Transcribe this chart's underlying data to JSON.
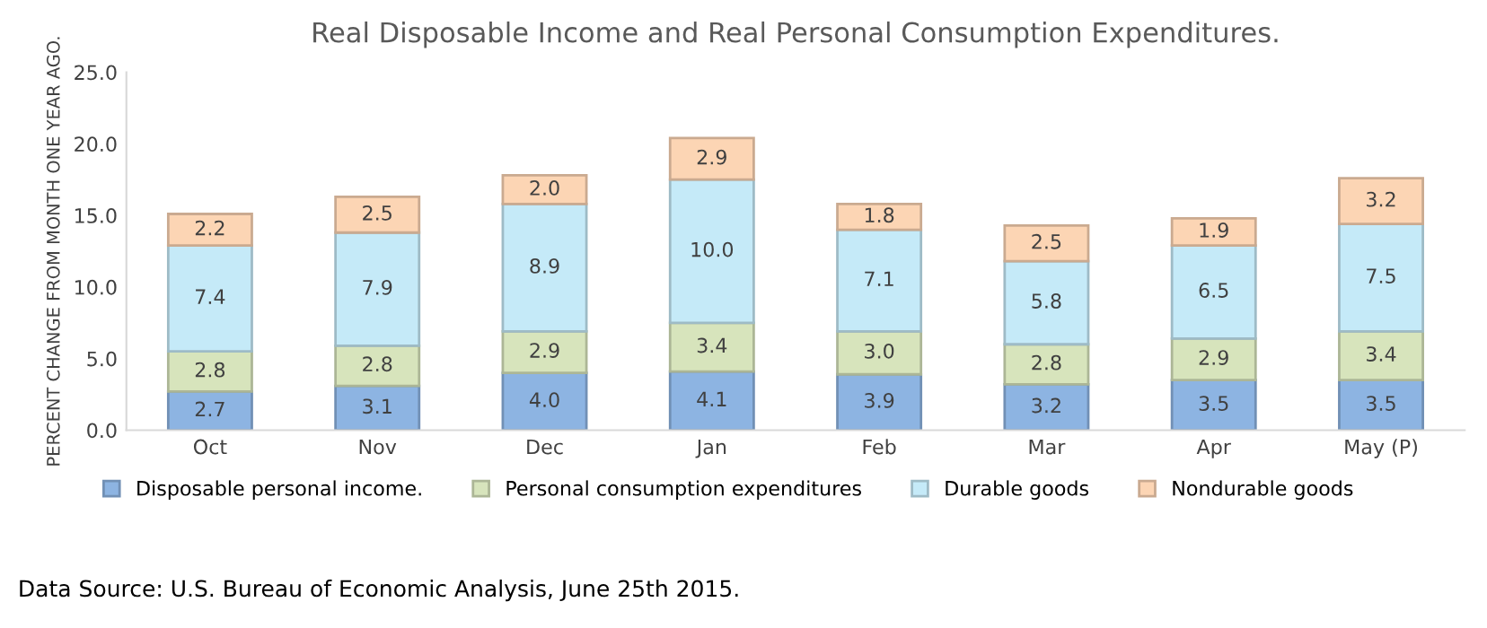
{
  "chart_data": {
    "type": "bar",
    "stacked": true,
    "title": "Real Disposable Income and Real Personal Consumption Expenditures.",
    "ylabel": "PERCENT CHANGE FROM MONTH ONE YEAR AGO.",
    "categories": [
      "Oct",
      "Nov",
      "Dec",
      "Jan",
      "Feb",
      "Mar",
      "Apr",
      "May (P)"
    ],
    "series": [
      {
        "name": "Disposable personal income.",
        "color": "#8db4e2",
        "values": [
          2.7,
          3.1,
          4.0,
          4.1,
          3.9,
          3.2,
          3.5,
          3.5
        ],
        "value_labels": [
          "2.7",
          "3.1",
          "4.0",
          "4.1",
          "3.9",
          "3.2",
          "3.5",
          "3.5"
        ]
      },
      {
        "name": "Personal consumption expenditures",
        "color": "#d7e4bc",
        "values": [
          2.8,
          2.8,
          2.9,
          3.4,
          3.0,
          2.8,
          2.9,
          3.4
        ],
        "value_labels": [
          "2.8",
          "2.8",
          "2.9",
          "3.4",
          "3.0",
          "2.8",
          "2.9",
          "3.4"
        ]
      },
      {
        "name": "Durable goods",
        "color": "#c5eaf8",
        "values": [
          7.4,
          7.9,
          8.9,
          10.0,
          7.1,
          5.8,
          6.5,
          7.5
        ],
        "value_labels": [
          "7.4",
          "7.9",
          "8.9",
          "10.0",
          "7.1",
          "5.8",
          "6.5",
          "7.5"
        ]
      },
      {
        "name": "Nondurable goods",
        "color": "#fcd5b4",
        "values": [
          2.2,
          2.5,
          2.0,
          2.9,
          1.8,
          2.5,
          1.9,
          3.2
        ],
        "value_labels": [
          "2.2",
          "2.5",
          "2.0",
          "2.9",
          "1.8",
          "2.5",
          "1.9",
          "3.2"
        ]
      }
    ],
    "ylim": [
      0,
      25
    ],
    "yticks": [
      {
        "value": 0,
        "label": "0.0"
      },
      {
        "value": 5,
        "label": "5.0"
      },
      {
        "value": 10,
        "label": "10.0"
      },
      {
        "value": 15,
        "label": "15.0"
      },
      {
        "value": 20,
        "label": "20.0"
      },
      {
        "value": 25,
        "label": "25.0"
      }
    ],
    "grid": false,
    "legend": "bottom",
    "annotations": [
      "Data Source: U.S. Bureau of Economic Analysis, June 25th 2015."
    ]
  }
}
